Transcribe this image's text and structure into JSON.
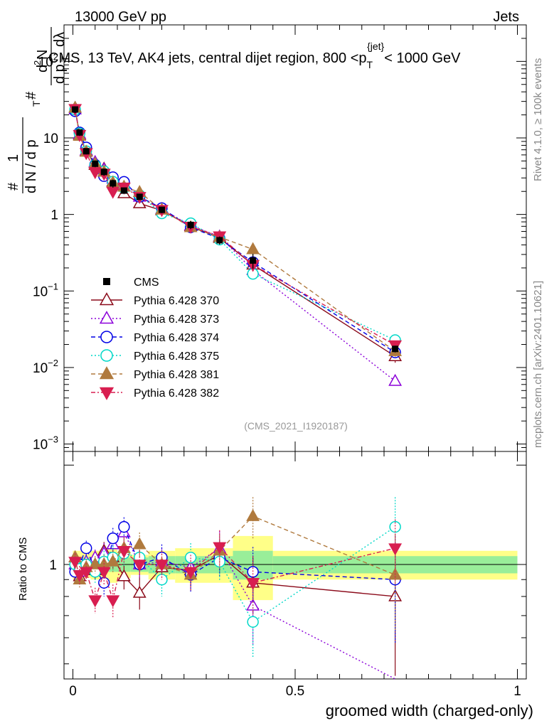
{
  "header": {
    "left": "13000 GeV pp",
    "right": "Jets"
  },
  "side_labels": {
    "rivet": "Rivet 4.1.0, ≥ 100k events",
    "mcplots": "mcplots.cern.ch [arXiv:2401.10621]"
  },
  "chart_data": {
    "type": "line",
    "title": "CMS, 13 TeV, AK4 jets, central dijet region, 800 <p_T^{jet}< 1000 GeV",
    "title_parts": {
      "prefix": "CMS, 13 TeV, AK4 jets, central dijet region, 800 <p",
      "sub": "T",
      "sup": "{jet}",
      "suffix": "< 1000 GeV"
    },
    "analysis_tag": "(CMS_2021_I1920187)",
    "xlabel": "groomed width (charged-only)",
    "ylabel_parts": [
      "#",
      "1",
      "d N / d p",
      "T",
      "#",
      "d p",
      "T",
      "dλ",
      "d",
      "2",
      "N"
    ],
    "ylabel": "1/dN/dp_T  d^2N/dp_T dλ",
    "ratio_ylabel": "Ratio to CMS",
    "xlim": [
      -0.02,
      1.02
    ],
    "ylim": [
      0.0008,
      300
    ],
    "ratio_ylim": [
      0.45,
      2.2
    ],
    "x_ticks": [
      {
        "v": 0,
        "label": "0"
      },
      {
        "v": 0.5,
        "label": "0.5"
      },
      {
        "v": 1,
        "label": "1"
      }
    ],
    "y_ticks": [
      {
        "v": 0.001,
        "base": "10",
        "exp": "−3"
      },
      {
        "v": 0.01,
        "base": "10",
        "exp": "−2"
      },
      {
        "v": 0.1,
        "base": "10",
        "exp": "−1"
      },
      {
        "v": 1,
        "base": "1",
        "exp": ""
      },
      {
        "v": 10,
        "base": "10",
        "exp": ""
      },
      {
        "v": 100,
        "base": "10",
        "exp": "2"
      }
    ],
    "ratio_ticks": [
      {
        "v": 1,
        "label": "1"
      }
    ],
    "bins": [
      [
        0,
        0.01
      ],
      [
        0.01,
        0.02
      ],
      [
        0.02,
        0.04
      ],
      [
        0.04,
        0.06
      ],
      [
        0.06,
        0.08
      ],
      [
        0.08,
        0.1
      ],
      [
        0.1,
        0.13
      ],
      [
        0.13,
        0.17
      ],
      [
        0.17,
        0.23
      ],
      [
        0.23,
        0.3
      ],
      [
        0.3,
        0.36
      ],
      [
        0.36,
        0.45
      ],
      [
        0.45,
        1.0
      ]
    ],
    "x": [
      0.005,
      0.015,
      0.03,
      0.05,
      0.07,
      0.09,
      0.115,
      0.15,
      0.2,
      0.265,
      0.33,
      0.405,
      0.725
    ],
    "data": {
      "name": "CMS",
      "values": [
        23.5,
        11.8,
        6.7,
        4.6,
        3.6,
        2.55,
        2.05,
        1.7,
        1.15,
        0.73,
        0.46,
        0.25,
        0.0175
      ],
      "stat_rel": [
        0.05,
        0.05,
        0.05,
        0.05,
        0.05,
        0.05,
        0.05,
        0.05,
        0.06,
        0.06,
        0.06,
        0.1,
        0.06
      ],
      "tot_rel": [
        0.1,
        0.1,
        0.09,
        0.1,
        0.11,
        0.12,
        0.09,
        0.07,
        0.1,
        0.12,
        0.12,
        0.22,
        0.1
      ]
    },
    "series": [
      {
        "name": "Pythia 6.428 370",
        "color": "#8b0a1a",
        "marker": "triangle-up-open",
        "dash": "",
        "ratio": [
          1.05,
          0.92,
          1.0,
          0.96,
          1.1,
          1.05,
          0.92,
          0.82,
          0.98,
          0.96,
          1.07,
          0.88,
          0.8
        ],
        "err": [
          0.05,
          0.05,
          0.05,
          0.06,
          0.07,
          0.08,
          0.08,
          0.09,
          0.09,
          0.1,
          0.12,
          0.17,
          0.35
        ]
      },
      {
        "name": "Pythia 6.428 373",
        "color": "#8b00d9",
        "marker": "triangle-up-open",
        "dash": "2,3",
        "ratio": [
          1.0,
          0.95,
          1.02,
          1.05,
          1.08,
          1.15,
          1.25,
          1.0,
          1.02,
          0.98,
          1.12,
          0.75,
          0.38
        ],
        "err": [
          0.05,
          0.05,
          0.06,
          0.06,
          0.08,
          0.08,
          0.09,
          0.09,
          0.1,
          0.1,
          0.14,
          0.18,
          0.2
        ]
      },
      {
        "name": "Pythia 6.428 374",
        "color": "#0000e6",
        "marker": "circle-open",
        "dash": "6,4",
        "ratio": [
          0.95,
          1.0,
          1.12,
          0.97,
          0.88,
          1.2,
          1.3,
          1.0,
          1.05,
          0.93,
          1.05,
          0.95,
          0.9
        ],
        "err": [
          0.05,
          0.05,
          0.06,
          0.07,
          0.08,
          0.09,
          0.09,
          0.1,
          0.1,
          0.11,
          0.13,
          0.18,
          0.32
        ]
      },
      {
        "name": "Pythia 6.428 375",
        "color": "#00d8c8",
        "marker": "circle-open",
        "dash": "2,3",
        "ratio": [
          1.0,
          0.97,
          1.0,
          0.95,
          1.02,
          1.05,
          1.08,
          1.05,
          0.9,
          1.05,
          1.02,
          0.67,
          1.3
        ],
        "err": [
          0.05,
          0.05,
          0.06,
          0.07,
          0.08,
          0.09,
          0.09,
          0.1,
          0.1,
          0.11,
          0.13,
          0.15,
          0.3
        ]
      },
      {
        "name": "Pythia 6.428 381",
        "color": "#b07a3e",
        "marker": "triangle-up-filled",
        "dash": "6,4",
        "ratio": [
          1.05,
          0.9,
          0.98,
          1.0,
          1.0,
          1.02,
          1.12,
          1.15,
          1.0,
          0.93,
          1.1,
          1.4,
          0.93
        ],
        "err": [
          0.05,
          0.05,
          0.06,
          0.06,
          0.07,
          0.08,
          0.09,
          0.1,
          0.1,
          0.1,
          0.13,
          0.2,
          0.3
        ]
      },
      {
        "name": "Pythia 6.428 382",
        "color": "#d81e50",
        "marker": "triangle-down-filled",
        "dash": "6,3,2,3",
        "ratio": [
          1.02,
          0.93,
          0.95,
          0.78,
          0.95,
          0.78,
          1.1,
          1.0,
          1.0,
          0.95,
          1.13,
          0.88,
          1.12
        ],
        "err": [
          0.06,
          0.06,
          0.06,
          0.07,
          0.08,
          0.09,
          0.1,
          0.1,
          0.1,
          0.12,
          0.14,
          0.18,
          0.25
        ]
      }
    ]
  }
}
